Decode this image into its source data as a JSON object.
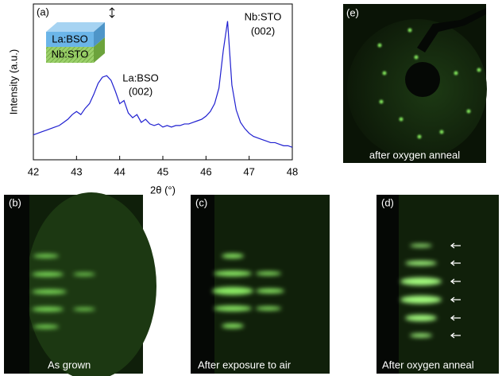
{
  "chart_data": {
    "type": "line",
    "panel_label": "(a)",
    "xlabel": "2θ (°)",
    "ylabel": "Intensity (a.u.)",
    "inset_labels": [
      "La:BSO",
      "Nb:STO"
    ],
    "annotations": [
      [
        "La:BSO",
        "(002)"
      ],
      [
        "Nb:STO",
        "(002)"
      ]
    ],
    "color": "#1f1fd0",
    "xlim": [
      42,
      48
    ],
    "xticks": [
      42,
      43,
      44,
      45,
      46,
      47,
      48
    ],
    "ylim": [
      0,
      1
    ],
    "x": [
      42.0,
      42.1,
      42.2,
      42.3,
      42.4,
      42.5,
      42.6,
      42.7,
      42.8,
      42.9,
      43.0,
      43.1,
      43.2,
      43.3,
      43.4,
      43.5,
      43.6,
      43.7,
      43.8,
      43.9,
      44.0,
      44.1,
      44.2,
      44.3,
      44.4,
      44.5,
      44.6,
      44.7,
      44.8,
      44.9,
      45.0,
      45.1,
      45.2,
      45.3,
      45.4,
      45.5,
      45.6,
      45.7,
      45.8,
      45.9,
      46.0,
      46.1,
      46.2,
      46.3,
      46.4,
      46.5,
      46.6,
      46.7,
      46.8,
      46.9,
      47.0,
      47.1,
      47.2,
      47.3,
      47.4,
      47.5,
      47.6,
      47.7,
      47.8,
      47.9,
      48.0
    ],
    "values": [
      0.16,
      0.17,
      0.18,
      0.19,
      0.2,
      0.21,
      0.22,
      0.24,
      0.26,
      0.29,
      0.31,
      0.29,
      0.33,
      0.36,
      0.42,
      0.49,
      0.53,
      0.54,
      0.51,
      0.44,
      0.36,
      0.38,
      0.3,
      0.27,
      0.29,
      0.24,
      0.26,
      0.23,
      0.22,
      0.23,
      0.21,
      0.22,
      0.21,
      0.22,
      0.22,
      0.23,
      0.23,
      0.24,
      0.25,
      0.26,
      0.28,
      0.31,
      0.36,
      0.46,
      0.7,
      0.89,
      0.48,
      0.32,
      0.24,
      0.2,
      0.17,
      0.15,
      0.14,
      0.13,
      0.12,
      0.11,
      0.11,
      0.1,
      0.09,
      0.09,
      0.08
    ]
  },
  "panels": [
    {
      "label": "(b)",
      "caption": "As grown"
    },
    {
      "label": "(c)",
      "caption": "After exposure to air"
    },
    {
      "label": "(d)",
      "caption": "After oxygen anneal"
    },
    {
      "label": "(e)",
      "caption": "after oxygen anneal"
    }
  ]
}
